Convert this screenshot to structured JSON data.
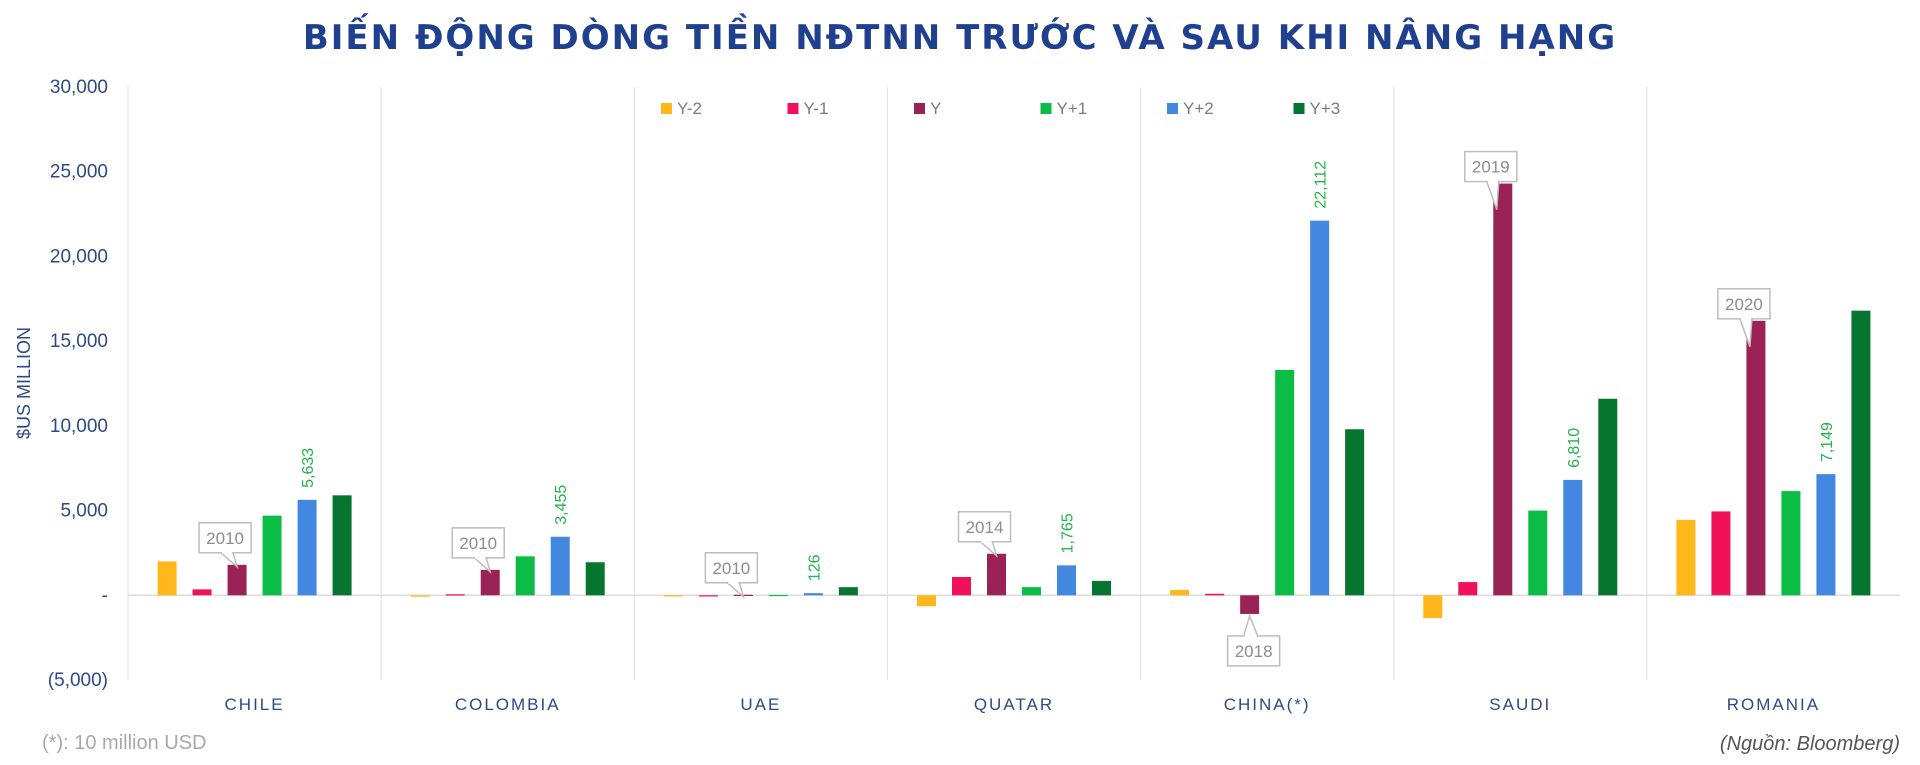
{
  "chart_data": {
    "type": "bar",
    "title": "BIẾN ĐỘNG DÒNG TIỀN NĐTNN TRƯỚC VÀ SAU KHI NÂNG HẠNG",
    "ylabel": "$US MILLION",
    "xlabel": "",
    "ylim": [
      -5000,
      30000
    ],
    "yticks": [
      -5000,
      0,
      5000,
      10000,
      15000,
      20000,
      25000,
      30000
    ],
    "ytick_labels": [
      "(5,000)",
      "-",
      "5,000",
      "10,000",
      "15,000",
      "20,000",
      "25,000",
      "30,000"
    ],
    "categories": [
      "CHILE",
      "COLOMBIA",
      "UAE",
      "QUATAR",
      "CHINA(*)",
      "SAUDI",
      "ROMANIA"
    ],
    "series": [
      {
        "name": "Y-2",
        "color": "#ffb71b",
        "values": [
          2000,
          -80,
          0,
          -650,
          320,
          -1350,
          4450
        ]
      },
      {
        "name": "Y-1",
        "color": "#f0115a",
        "values": [
          350,
          60,
          0,
          1080,
          90,
          780,
          4950
        ]
      },
      {
        "name": "Y",
        "color": "#9b2257",
        "values": [
          1800,
          1500,
          30,
          2450,
          -1100,
          24300,
          16200
        ]
      },
      {
        "name": "Y+1",
        "color": "#0cbd45",
        "values": [
          4700,
          2300,
          20,
          480,
          13300,
          5000,
          6150
        ]
      },
      {
        "name": "Y+2",
        "color": "#4388e0",
        "values": [
          5633,
          3455,
          126,
          1765,
          22112,
          6810,
          7149
        ]
      },
      {
        "name": "Y+3",
        "color": "#067530",
        "values": [
          5900,
          1950,
          480,
          850,
          9800,
          11600,
          16800
        ]
      }
    ],
    "data_labels": [
      {
        "category": "CHILE",
        "series": "Y+2",
        "text": "5,633"
      },
      {
        "category": "COLOMBIA",
        "series": "Y+2",
        "text": "3,455"
      },
      {
        "category": "UAE",
        "series": "Y+2",
        "text": "126"
      },
      {
        "category": "QUATAR",
        "series": "Y+2",
        "text": "1,765"
      },
      {
        "category": "CHINA(*)",
        "series": "Y+2",
        "text": "22,112"
      },
      {
        "category": "SAUDI",
        "series": "Y+2",
        "text": "6,810"
      },
      {
        "category": "ROMANIA",
        "series": "Y+2",
        "text": "7,149"
      }
    ],
    "annotations": [
      {
        "category": "CHILE",
        "text": "2010"
      },
      {
        "category": "COLOMBIA",
        "text": "2010"
      },
      {
        "category": "UAE",
        "text": "2010"
      },
      {
        "category": "QUATAR",
        "text": "2014"
      },
      {
        "category": "CHINA(*)",
        "text": "2018"
      },
      {
        "category": "SAUDI",
        "text": "2019"
      },
      {
        "category": "ROMANIA",
        "text": "2020"
      }
    ],
    "legend_position": "top",
    "grid": false
  },
  "footnote": "(*): 10 million USD",
  "source": "(Nguồn:  Bloomberg)"
}
